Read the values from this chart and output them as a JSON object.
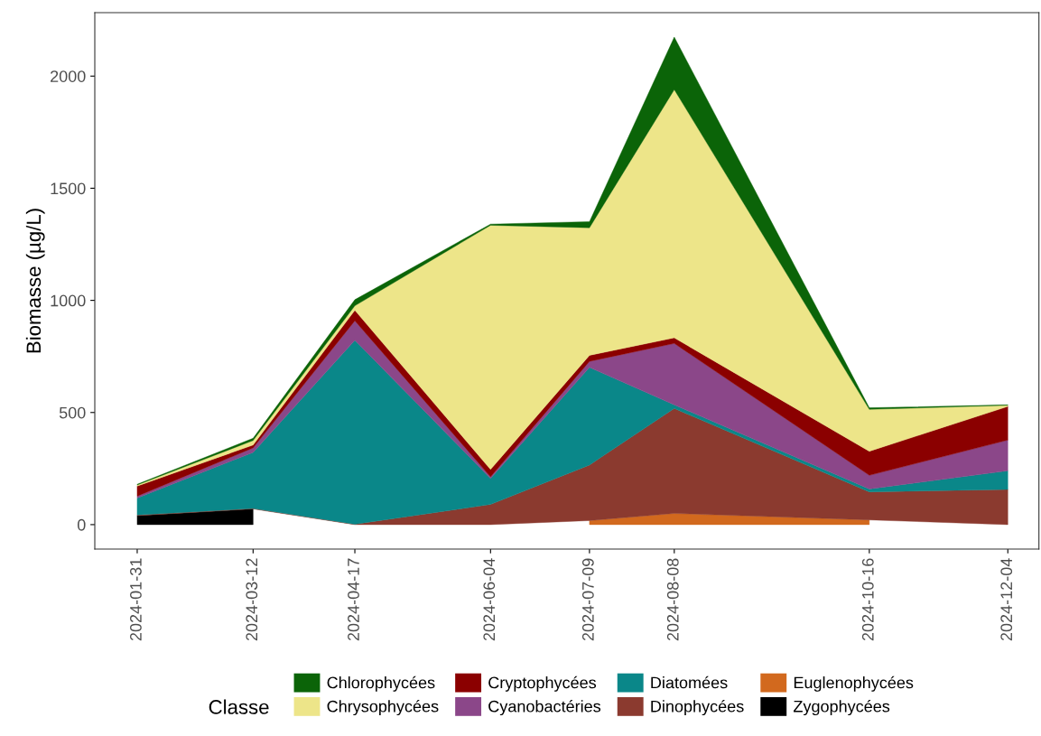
{
  "chart_data": {
    "type": "area",
    "stacked": true,
    "ylabel": "Biomasse (µg/L)",
    "legend_title": "Classe",
    "legend": "bottom",
    "grid": false,
    "x": [
      "2024-01-31",
      "2024-03-12",
      "2024-04-17",
      "2024-06-04",
      "2024-07-09",
      "2024-08-08",
      "2024-10-16",
      "2024-12-04"
    ],
    "xlim": [
      "2024-01-16",
      "2024-12-15"
    ],
    "xticks": [
      "2024-01-31",
      "2024-03-12",
      "2024-04-17",
      "2024-06-04",
      "2024-07-09",
      "2024-08-08",
      "2024-10-16",
      "2024-12-04"
    ],
    "ylim": [
      -109,
      2283
    ],
    "yticks": [
      0,
      500,
      1000,
      1500,
      2000
    ],
    "series": [
      {
        "name": "Zygophycées",
        "color": "#000000",
        "values": [
          40,
          70,
          null,
          null,
          null,
          null,
          null,
          null
        ]
      },
      {
        "name": "Euglenophycées",
        "color": "#d2691e",
        "values": [
          null,
          null,
          null,
          null,
          18,
          50,
          21,
          null
        ]
      },
      {
        "name": "Dinophycées",
        "color": "#8b3a2f",
        "values": [
          3,
          2,
          2,
          90,
          248,
          468,
          125,
          157
        ]
      },
      {
        "name": "Diatomées",
        "color": "#0a8789",
        "values": [
          76,
          250,
          820,
          116,
          435,
          16,
          13,
          83
        ]
      },
      {
        "name": "Cyanobactéries",
        "color": "#8b4789",
        "values": [
          8,
          20,
          87,
          7,
          27,
          274,
          61,
          137
        ]
      },
      {
        "name": "Cryptophycées",
        "color": "#8b0000",
        "values": [
          45,
          13,
          47,
          33,
          27,
          25,
          107,
          150
        ]
      },
      {
        "name": "Chrysophycées",
        "color": "#ede589",
        "values": [
          5,
          20,
          20,
          1089,
          569,
          1107,
          187,
          5
        ]
      },
      {
        "name": "Chlorophycées",
        "color": "#0b6408",
        "values": [
          3,
          10,
          27,
          5,
          27,
          234,
          7,
          2
        ]
      }
    ]
  }
}
